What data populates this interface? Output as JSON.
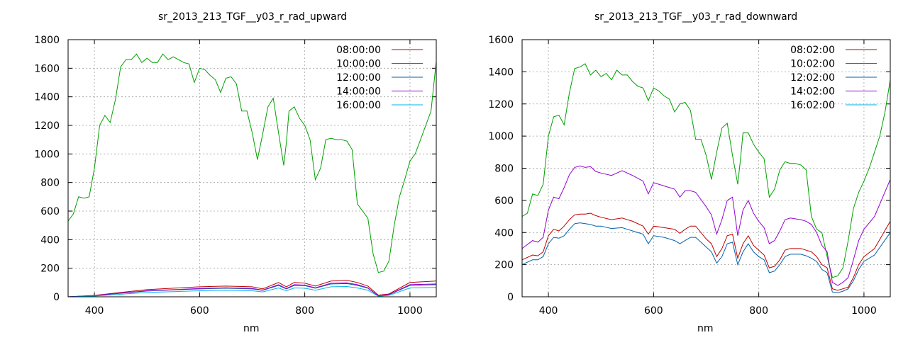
{
  "chart_data": [
    {
      "type": "line",
      "title": "sr_2013_213_TGF__y03_r_rad_upward",
      "xlabel": "nm",
      "ylabel": "",
      "xlim": [
        350,
        1050
      ],
      "ylim": [
        0,
        1800
      ],
      "xticks": [
        400,
        600,
        800,
        1000
      ],
      "yticks": [
        0,
        200,
        400,
        600,
        800,
        1000,
        1200,
        1400,
        1600,
        1800
      ],
      "grid": true,
      "legend_position": "top-right",
      "series": [
        {
          "name": "08:00:00",
          "color": "#c00000",
          "x": [
            350,
            400,
            450,
            500,
            550,
            600,
            650,
            700,
            720,
            750,
            765,
            780,
            800,
            820,
            850,
            880,
            900,
            920,
            940,
            960,
            1000,
            1050
          ],
          "y": [
            0,
            10,
            30,
            50,
            60,
            70,
            75,
            70,
            55,
            100,
            70,
            100,
            95,
            75,
            110,
            115,
            100,
            75,
            12,
            20,
            100,
            110
          ]
        },
        {
          "name": "10:00:00",
          "color": "#00a000",
          "x": [
            350,
            360,
            370,
            380,
            390,
            400,
            410,
            420,
            430,
            440,
            450,
            460,
            470,
            480,
            490,
            500,
            510,
            520,
            530,
            540,
            550,
            560,
            570,
            580,
            590,
            600,
            610,
            620,
            630,
            640,
            650,
            660,
            670,
            680,
            690,
            700,
            710,
            720,
            730,
            740,
            750,
            760,
            765,
            770,
            780,
            790,
            800,
            810,
            820,
            830,
            840,
            850,
            860,
            870,
            880,
            890,
            900,
            910,
            920,
            930,
            940,
            950,
            960,
            970,
            980,
            990,
            1000,
            1010,
            1020,
            1030,
            1040,
            1050
          ],
          "y": [
            530,
            580,
            700,
            690,
            700,
            900,
            1200,
            1270,
            1220,
            1380,
            1610,
            1660,
            1660,
            1700,
            1640,
            1670,
            1640,
            1640,
            1700,
            1660,
            1680,
            1660,
            1640,
            1630,
            1500,
            1600,
            1590,
            1550,
            1520,
            1430,
            1530,
            1540,
            1490,
            1300,
            1300,
            1150,
            960,
            1140,
            1330,
            1390,
            1150,
            920,
            1080,
            1300,
            1330,
            1250,
            1200,
            1100,
            820,
            900,
            1100,
            1110,
            1100,
            1100,
            1090,
            1030,
            650,
            600,
            550,
            300,
            170,
            180,
            250,
            500,
            700,
            820,
            950,
            1000,
            1100,
            1200,
            1300,
            1650
          ]
        },
        {
          "name": "12:00:00",
          "color": "#0060ad",
          "x": [
            350,
            400,
            450,
            500,
            550,
            600,
            650,
            700,
            720,
            750,
            765,
            780,
            800,
            820,
            850,
            880,
            900,
            920,
            940,
            960,
            1000,
            1050
          ],
          "y": [
            0,
            8,
            25,
            40,
            48,
            55,
            60,
            55,
            45,
            80,
            55,
            80,
            78,
            60,
            90,
            92,
            80,
            60,
            5,
            15,
            80,
            85
          ]
        },
        {
          "name": "14:00:00",
          "color": "#9400d3",
          "x": [
            350,
            400,
            450,
            500,
            550,
            600,
            650,
            700,
            720,
            750,
            765,
            780,
            800,
            820,
            850,
            880,
            900,
            920,
            940,
            960,
            1000,
            1050
          ],
          "y": [
            0,
            8,
            26,
            42,
            50,
            58,
            63,
            58,
            47,
            85,
            58,
            85,
            82,
            63,
            95,
            97,
            85,
            63,
            6,
            16,
            85,
            90
          ]
        },
        {
          "name": "16:00:00",
          "color": "#00b4e6",
          "x": [
            350,
            400,
            450,
            500,
            550,
            600,
            650,
            700,
            720,
            750,
            765,
            780,
            800,
            820,
            850,
            880,
            900,
            920,
            940,
            960,
            1000,
            1050
          ],
          "y": [
            0,
            5,
            18,
            30,
            36,
            42,
            46,
            42,
            34,
            62,
            42,
            62,
            60,
            46,
            70,
            72,
            62,
            46,
            3,
            10,
            62,
            66
          ]
        }
      ]
    },
    {
      "type": "line",
      "title": "sr_2013_213_TGF__y03_r_rad_downward",
      "xlabel": "nm",
      "ylabel": "",
      "xlim": [
        350,
        1050
      ],
      "ylim": [
        0,
        1600
      ],
      "xticks": [
        400,
        600,
        800,
        1000
      ],
      "yticks": [
        0,
        200,
        400,
        600,
        800,
        1000,
        1200,
        1400,
        1600
      ],
      "grid": true,
      "legend_position": "top-right",
      "series": [
        {
          "name": "08:02:00",
          "color": "#c00000",
          "x": [
            350,
            370,
            380,
            390,
            400,
            410,
            420,
            430,
            440,
            450,
            460,
            470,
            480,
            490,
            500,
            520,
            540,
            560,
            580,
            590,
            600,
            620,
            640,
            650,
            660,
            670,
            680,
            700,
            710,
            720,
            730,
            740,
            750,
            760,
            770,
            780,
            790,
            800,
            810,
            820,
            830,
            840,
            850,
            860,
            870,
            880,
            890,
            900,
            910,
            920,
            930,
            940,
            950,
            960,
            970,
            980,
            990,
            1000,
            1020,
            1050
          ],
          "y": [
            230,
            260,
            255,
            280,
            380,
            420,
            410,
            440,
            480,
            510,
            515,
            515,
            520,
            505,
            495,
            480,
            490,
            470,
            440,
            390,
            440,
            430,
            420,
            395,
            420,
            440,
            440,
            360,
            330,
            250,
            300,
            380,
            390,
            240,
            330,
            380,
            320,
            290,
            260,
            180,
            190,
            230,
            290,
            300,
            300,
            300,
            290,
            280,
            250,
            200,
            180,
            50,
            40,
            50,
            60,
            120,
            200,
            250,
            300,
            470
          ]
        },
        {
          "name": "10:02:00",
          "color": "#00a000",
          "x": [
            350,
            360,
            370,
            380,
            390,
            400,
            410,
            420,
            430,
            440,
            450,
            460,
            470,
            480,
            490,
            500,
            510,
            520,
            530,
            540,
            550,
            560,
            570,
            580,
            590,
            600,
            610,
            620,
            630,
            640,
            650,
            660,
            670,
            680,
            690,
            700,
            710,
            720,
            730,
            740,
            750,
            760,
            765,
            770,
            780,
            790,
            800,
            810,
            820,
            830,
            840,
            850,
            860,
            870,
            880,
            890,
            900,
            910,
            920,
            930,
            940,
            950,
            960,
            970,
            980,
            990,
            1000,
            1010,
            1020,
            1030,
            1040,
            1050
          ],
          "y": [
            500,
            520,
            640,
            630,
            700,
            1000,
            1120,
            1130,
            1070,
            1270,
            1420,
            1430,
            1450,
            1380,
            1410,
            1370,
            1390,
            1350,
            1410,
            1380,
            1380,
            1340,
            1310,
            1300,
            1220,
            1300,
            1280,
            1250,
            1230,
            1150,
            1200,
            1210,
            1160,
            980,
            980,
            880,
            730,
            900,
            1050,
            1080,
            880,
            700,
            850,
            1020,
            1020,
            950,
            900,
            860,
            620,
            670,
            790,
            840,
            830,
            830,
            820,
            790,
            500,
            420,
            400,
            250,
            120,
            130,
            180,
            350,
            550,
            650,
            720,
            800,
            900,
            1000,
            1150,
            1350
          ]
        },
        {
          "name": "12:02:00",
          "color": "#0060ad",
          "x": [
            350,
            370,
            380,
            390,
            400,
            410,
            420,
            430,
            440,
            450,
            460,
            470,
            480,
            490,
            500,
            520,
            540,
            560,
            580,
            590,
            600,
            620,
            640,
            650,
            660,
            670,
            680,
            700,
            710,
            720,
            730,
            740,
            750,
            760,
            770,
            780,
            790,
            800,
            810,
            820,
            830,
            840,
            850,
            860,
            870,
            880,
            890,
            900,
            910,
            920,
            930,
            940,
            950,
            960,
            970,
            980,
            990,
            1000,
            1020,
            1050
          ],
          "y": [
            200,
            230,
            230,
            250,
            330,
            370,
            365,
            380,
            420,
            455,
            460,
            455,
            450,
            440,
            440,
            425,
            430,
            410,
            390,
            330,
            380,
            370,
            350,
            330,
            350,
            370,
            370,
            310,
            280,
            210,
            250,
            330,
            340,
            200,
            280,
            330,
            280,
            250,
            230,
            150,
            160,
            200,
            250,
            265,
            265,
            265,
            255,
            240,
            220,
            170,
            150,
            30,
            25,
            35,
            50,
            100,
            170,
            220,
            260,
            400
          ]
        },
        {
          "name": "14:02:00",
          "color": "#9400d3",
          "x": [
            350,
            370,
            380,
            390,
            400,
            410,
            420,
            430,
            440,
            450,
            460,
            470,
            480,
            490,
            500,
            520,
            540,
            560,
            580,
            590,
            600,
            620,
            640,
            650,
            660,
            670,
            680,
            700,
            710,
            720,
            730,
            740,
            750,
            760,
            770,
            780,
            790,
            800,
            810,
            820,
            830,
            840,
            850,
            860,
            870,
            880,
            890,
            900,
            910,
            920,
            930,
            940,
            950,
            960,
            970,
            980,
            990,
            1000,
            1020,
            1050
          ],
          "y": [
            300,
            350,
            340,
            370,
            540,
            620,
            610,
            680,
            760,
            805,
            815,
            805,
            810,
            780,
            770,
            755,
            785,
            755,
            720,
            640,
            710,
            690,
            670,
            620,
            660,
            660,
            650,
            560,
            510,
            390,
            480,
            600,
            620,
            380,
            540,
            600,
            520,
            470,
            430,
            330,
            350,
            410,
            480,
            490,
            485,
            480,
            470,
            450,
            400,
            320,
            280,
            90,
            70,
            90,
            120,
            230,
            350,
            420,
            500,
            730
          ]
        },
        {
          "name": "16:02:00",
          "color": "#00b4e6",
          "x": [
            350,
            400,
            450,
            500,
            550,
            600,
            650,
            700,
            720,
            750,
            765,
            780,
            800,
            820,
            850,
            880,
            900,
            920,
            940,
            960,
            1000,
            1050
          ],
          "y": [
            0,
            0,
            0,
            0,
            0,
            0,
            0,
            0,
            0,
            0,
            0,
            0,
            0,
            0,
            0,
            0,
            0,
            0,
            0,
            0,
            0,
            0
          ]
        }
      ]
    }
  ]
}
